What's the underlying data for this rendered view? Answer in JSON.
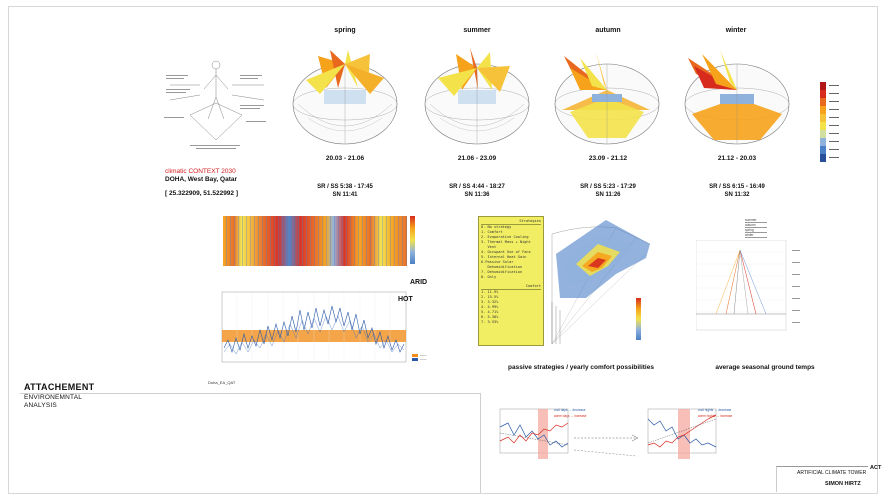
{
  "seasons": [
    {
      "name": "spring",
      "dates": "20.03 - 21.06",
      "sunrise_sunset": "SR / SS 5:38 - 17:45",
      "solar_noon": "SN 11:41"
    },
    {
      "name": "summer",
      "dates": "21.06 - 23.09",
      "sunrise_sunset": "SR / SS 4:44 - 18:27",
      "solar_noon": "SN 11:36"
    },
    {
      "name": "autumn",
      "dates": "23.09 - 21.12",
      "sunrise_sunset": "SR / SS 5:23 - 17:29",
      "solar_noon": "SN 11:26"
    },
    {
      "name": "winter",
      "dates": "21.12 - 20.03",
      "sunrise_sunset": "SR / SS 6:15 - 16:49",
      "solar_noon": "SN 11:32"
    }
  ],
  "context": {
    "label": "climatic CONTEXT 2030",
    "location": "DOHA, West Bay, Qatar",
    "coordinates": "[ 25.322909, 51.522992 ]"
  },
  "labels": {
    "arid": "ARID",
    "hot": "HOT",
    "attachment_title": "ATTACHEMENT",
    "attachment_sub1": "ENVIRONEMNTAL",
    "attachment_sub2": "ANALYSIS",
    "passive": "passive strategies / yearly comfort possibilities",
    "ground": "average seasonal ground temps",
    "chart_file": "Doha_EA_QAT"
  },
  "strategies_panel": {
    "header1": "Strategies",
    "lines1": [
      "0. No strategy",
      "",
      "1. Comfort",
      "2. Evaporative Cooling",
      "3. Thermal Mass + Night",
      "   Vent",
      "4. Occupant Use of Fans",
      "5. Internal Heat Gain",
      "6.Passive Solar",
      "   Dehumidification",
      "7. Dehumidification",
      "8. Only"
    ],
    "header2": "Comfort",
    "lines2": [
      "1. 11.9%",
      "2. 15.5%",
      "3. 3.32%",
      "4. 4.99%",
      "5. 4.71%",
      "6. 5.30%",
      "7. 3.53%"
    ]
  },
  "ground_legend": [
    "summer",
    "autumn",
    "spring",
    "winter"
  ],
  "trend_labels": {
    "left_a": "cool days → decrease",
    "left_b": "warm days → increase",
    "right_a": "cool nights → decrease",
    "right_b": "warm nights → increase"
  },
  "credits": {
    "project": "ARTIFICIAL CLIMATE TOWER",
    "author": "SIMON HIRTZ",
    "act": "ACT"
  },
  "colors": {
    "hot": "#d72b1e",
    "warm": "#f6a21a",
    "mild": "#f3e24a",
    "cool": "#4b7fc6",
    "panel": "#f1ee63"
  }
}
